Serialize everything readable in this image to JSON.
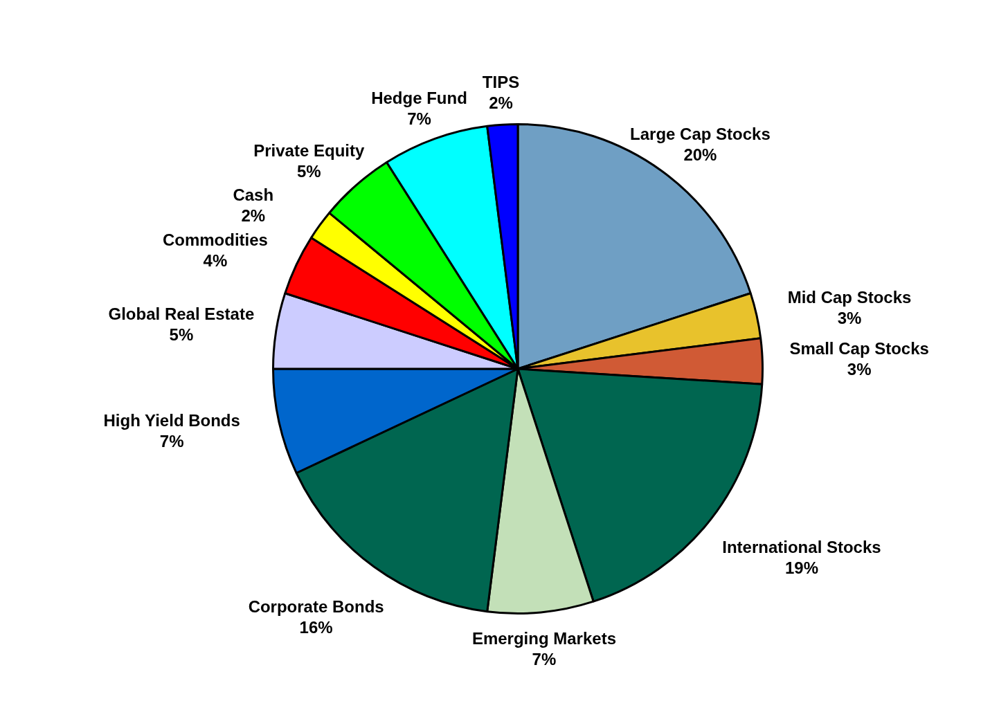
{
  "chart_data": {
    "type": "pie",
    "categories": [
      "Large Cap Stocks",
      "Mid Cap Stocks",
      "Small Cap Stocks",
      "International Stocks",
      "Emerging Markets",
      "Corporate Bonds",
      "High Yield Bonds",
      "Global Real Estate",
      "Commodities",
      "Cash",
      "Private Equity",
      "Hedge Fund",
      "TIPS"
    ],
    "values": [
      20,
      3,
      3,
      19,
      7,
      16,
      7,
      5,
      4,
      2,
      5,
      7,
      2
    ],
    "value_labels": [
      "20%",
      "3%",
      "3%",
      "19%",
      "7%",
      "16%",
      "7%",
      "5%",
      "4%",
      "2%",
      "5%",
      "7%",
      "2%"
    ],
    "colors": [
      "#6f9fc4",
      "#e8c22c",
      "#d05a35",
      "#006650",
      "#c3e0b8",
      "#006650",
      "#0066cc",
      "#ccccff",
      "#ff0000",
      "#ffff00",
      "#00ff00",
      "#00ffff",
      "#0000ff"
    ],
    "legend": false
  }
}
